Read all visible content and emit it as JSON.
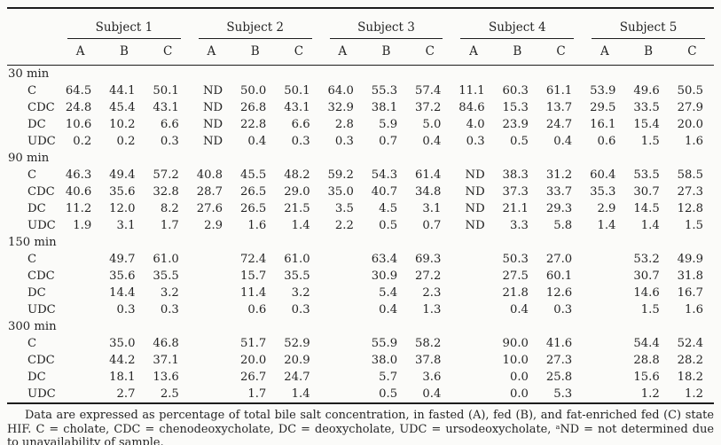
{
  "meta": {
    "background_color": "#fbfbf9",
    "text_color": "#242424",
    "rule_color": "#1d1d1d"
  },
  "table": {
    "subjects": [
      "Subject 1",
      "Subject 2",
      "Subject 3",
      "Subject 4",
      "Subject 5"
    ],
    "condition_columns": [
      "A",
      "B",
      "C"
    ],
    "sections": [
      {
        "label": "30 min",
        "rows": [
          {
            "label": "C",
            "values": [
              "64.5",
              "44.1",
              "50.1",
              "ND",
              "50.0",
              "50.1",
              "64.0",
              "55.3",
              "57.4",
              "11.1",
              "60.3",
              "61.1",
              "53.9",
              "49.6",
              "50.5"
            ]
          },
          {
            "label": "CDC",
            "values": [
              "24.8",
              "45.4",
              "43.1",
              "ND",
              "26.8",
              "43.1",
              "32.9",
              "38.1",
              "37.2",
              "84.6",
              "15.3",
              "13.7",
              "29.5",
              "33.5",
              "27.9"
            ]
          },
          {
            "label": "DC",
            "values": [
              "10.6",
              "10.2",
              "6.6",
              "ND",
              "22.8",
              "6.6",
              "2.8",
              "5.9",
              "5.0",
              "4.0",
              "23.9",
              "24.7",
              "16.1",
              "15.4",
              "20.0"
            ]
          },
          {
            "label": "UDC",
            "values": [
              "0.2",
              "0.2",
              "0.3",
              "ND",
              "0.4",
              "0.3",
              "0.3",
              "0.7",
              "0.4",
              "0.3",
              "0.5",
              "0.4",
              "0.6",
              "1.5",
              "1.6"
            ]
          }
        ]
      },
      {
        "label": "90 min",
        "rows": [
          {
            "label": "C",
            "values": [
              "46.3",
              "49.4",
              "57.2",
              "40.8",
              "45.5",
              "48.2",
              "59.2",
              "54.3",
              "61.4",
              "ND",
              "38.3",
              "31.2",
              "60.4",
              "53.5",
              "58.5"
            ]
          },
          {
            "label": "CDC",
            "values": [
              "40.6",
              "35.6",
              "32.8",
              "28.7",
              "26.5",
              "29.0",
              "35.0",
              "40.7",
              "34.8",
              "ND",
              "37.3",
              "33.7",
              "35.3",
              "30.7",
              "27.3"
            ]
          },
          {
            "label": "DC",
            "values": [
              "11.2",
              "12.0",
              "8.2",
              "27.6",
              "26.5",
              "21.5",
              "3.5",
              "4.5",
              "3.1",
              "ND",
              "21.1",
              "29.3",
              "2.9",
              "14.5",
              "12.8"
            ]
          },
          {
            "label": "UDC",
            "values": [
              "1.9",
              "3.1",
              "1.7",
              "2.9",
              "1.6",
              "1.4",
              "2.2",
              "0.5",
              "0.7",
              "ND",
              "3.3",
              "5.8",
              "1.4",
              "1.4",
              "1.5"
            ]
          }
        ]
      },
      {
        "label": "150 min",
        "rows": [
          {
            "label": "C",
            "values": [
              "",
              "49.7",
              "61.0",
              "",
              "72.4",
              "61.0",
              "",
              "63.4",
              "69.3",
              "",
              "50.3",
              "27.0",
              "",
              "53.2",
              "49.9"
            ]
          },
          {
            "label": "CDC",
            "values": [
              "",
              "35.6",
              "35.5",
              "",
              "15.7",
              "35.5",
              "",
              "30.9",
              "27.2",
              "",
              "27.5",
              "60.1",
              "",
              "30.7",
              "31.8"
            ]
          },
          {
            "label": "DC",
            "values": [
              "",
              "14.4",
              "3.2",
              "",
              "11.4",
              "3.2",
              "",
              "5.4",
              "2.3",
              "",
              "21.8",
              "12.6",
              "",
              "14.6",
              "16.7"
            ]
          },
          {
            "label": "UDC",
            "values": [
              "",
              "0.3",
              "0.3",
              "",
              "0.6",
              "0.3",
              "",
              "0.4",
              "1.3",
              "",
              "0.4",
              "0.3",
              "",
              "1.5",
              "1.6"
            ]
          }
        ]
      },
      {
        "label": "300 min",
        "rows": [
          {
            "label": "C",
            "values": [
              "",
              "35.0",
              "46.8",
              "",
              "51.7",
              "52.9",
              "",
              "55.9",
              "58.2",
              "",
              "90.0",
              "41.6",
              "",
              "54.4",
              "52.4"
            ]
          },
          {
            "label": "CDC",
            "values": [
              "",
              "44.2",
              "37.1",
              "",
              "20.0",
              "20.9",
              "",
              "38.0",
              "37.8",
              "",
              "10.0",
              "27.3",
              "",
              "28.8",
              "28.2"
            ]
          },
          {
            "label": "DC",
            "values": [
              "",
              "18.1",
              "13.6",
              "",
              "26.7",
              "24.7",
              "",
              "5.7",
              "3.6",
              "",
              "0.0",
              "25.8",
              "",
              "15.6",
              "18.2"
            ]
          },
          {
            "label": "UDC",
            "values": [
              "",
              "2.7",
              "2.5",
              "",
              "1.7",
              "1.4",
              "",
              "0.5",
              "0.4",
              "",
              "0.0",
              "5.3",
              "",
              "1.2",
              "1.2"
            ]
          }
        ]
      }
    ]
  },
  "footnote": {
    "text": "Data are expressed as percentage of total bile salt concentration, in fasted (A), fed (B), and fat-enriched fed (C) state HIF. C = cholate, CDC = chenodeoxycholate, DC = deoxycholate, UDC = ursodeoxycholate, ᵃND = not determined due to unavailability of sample."
  }
}
